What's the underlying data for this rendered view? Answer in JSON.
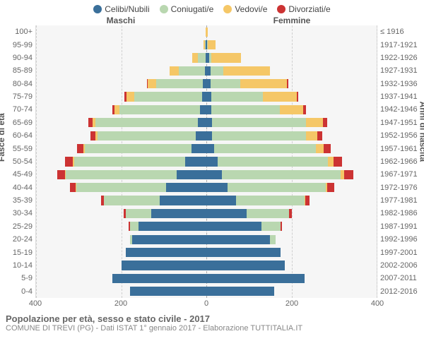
{
  "legend": [
    {
      "label": "Celibi/Nubili",
      "color": "#3a6f9a"
    },
    {
      "label": "Coniugati/e",
      "color": "#b9d7b0"
    },
    {
      "label": "Vedovi/e",
      "color": "#f5c767"
    },
    {
      "label": "Divorziati/e",
      "color": "#cc3333"
    }
  ],
  "headers": {
    "maschi": "Maschi",
    "femmine": "Femmine"
  },
  "axis_labels": {
    "left": "Fasce di età",
    "right": "Anni di nascita"
  },
  "footer": {
    "title": "Popolazione per età, sesso e stato civile - 2017",
    "sub": "COMUNE DI TREVI (PG) - Dati ISTAT 1° gennaio 2017 - Elaborazione TUTTITALIA.IT"
  },
  "chart": {
    "type": "population-pyramid-stacked",
    "max": 400,
    "ticks": [
      -400,
      -200,
      0,
      200,
      400
    ],
    "tick_labels": [
      "400",
      "200",
      "0",
      "200",
      "400"
    ],
    "background": "#f6f6f6",
    "grid_color": "#cfcfcf",
    "colors": {
      "single": "#3a6f9a",
      "married": "#b9d7b0",
      "widowed": "#f5c767",
      "divorced": "#cc3333"
    },
    "rows": [
      {
        "age": "100+",
        "birth": "≤ 1916",
        "m": {
          "single": 0,
          "married": 0,
          "widowed": 2,
          "divorced": 0
        },
        "f": {
          "single": 0,
          "married": 0,
          "widowed": 4,
          "divorced": 0
        }
      },
      {
        "age": "95-99",
        "birth": "1917-1921",
        "m": {
          "single": 1,
          "married": 2,
          "widowed": 4,
          "divorced": 0
        },
        "f": {
          "single": 2,
          "married": 1,
          "widowed": 18,
          "divorced": 0
        }
      },
      {
        "age": "90-94",
        "birth": "1922-1926",
        "m": {
          "single": 2,
          "married": 18,
          "widowed": 14,
          "divorced": 0
        },
        "f": {
          "single": 6,
          "married": 6,
          "widowed": 70,
          "divorced": 0
        }
      },
      {
        "age": "85-89",
        "birth": "1927-1931",
        "m": {
          "single": 4,
          "married": 60,
          "widowed": 22,
          "divorced": 0
        },
        "f": {
          "single": 10,
          "married": 30,
          "widowed": 110,
          "divorced": 0
        }
      },
      {
        "age": "80-84",
        "birth": "1932-1936",
        "m": {
          "single": 8,
          "married": 110,
          "widowed": 20,
          "divorced": 2
        },
        "f": {
          "single": 10,
          "married": 70,
          "widowed": 110,
          "divorced": 2
        }
      },
      {
        "age": "75-79",
        "birth": "1937-1941",
        "m": {
          "single": 10,
          "married": 160,
          "widowed": 18,
          "divorced": 4
        },
        "f": {
          "single": 12,
          "married": 120,
          "widowed": 80,
          "divorced": 4
        }
      },
      {
        "age": "70-74",
        "birth": "1942-1946",
        "m": {
          "single": 15,
          "married": 190,
          "widowed": 10,
          "divorced": 6
        },
        "f": {
          "single": 12,
          "married": 160,
          "widowed": 56,
          "divorced": 6
        }
      },
      {
        "age": "65-69",
        "birth": "1947-1951",
        "m": {
          "single": 20,
          "married": 240,
          "widowed": 8,
          "divorced": 10
        },
        "f": {
          "single": 14,
          "married": 220,
          "widowed": 40,
          "divorced": 10
        }
      },
      {
        "age": "60-64",
        "birth": "1952-1956",
        "m": {
          "single": 25,
          "married": 230,
          "widowed": 6,
          "divorced": 12
        },
        "f": {
          "single": 14,
          "married": 220,
          "widowed": 26,
          "divorced": 12
        }
      },
      {
        "age": "55-59",
        "birth": "1957-1961",
        "m": {
          "single": 35,
          "married": 250,
          "widowed": 4,
          "divorced": 14
        },
        "f": {
          "single": 18,
          "married": 240,
          "widowed": 18,
          "divorced": 16
        }
      },
      {
        "age": "50-54",
        "birth": "1962-1966",
        "m": {
          "single": 50,
          "married": 260,
          "widowed": 4,
          "divorced": 18
        },
        "f": {
          "single": 26,
          "married": 260,
          "widowed": 12,
          "divorced": 20
        }
      },
      {
        "age": "45-49",
        "birth": "1967-1971",
        "m": {
          "single": 70,
          "married": 260,
          "widowed": 2,
          "divorced": 18
        },
        "f": {
          "single": 36,
          "married": 280,
          "widowed": 8,
          "divorced": 22
        }
      },
      {
        "age": "40-44",
        "birth": "1972-1976",
        "m": {
          "single": 95,
          "married": 210,
          "widowed": 2,
          "divorced": 14
        },
        "f": {
          "single": 50,
          "married": 230,
          "widowed": 4,
          "divorced": 16
        }
      },
      {
        "age": "35-39",
        "birth": "1977-1981",
        "m": {
          "single": 110,
          "married": 130,
          "widowed": 0,
          "divorced": 8
        },
        "f": {
          "single": 70,
          "married": 160,
          "widowed": 2,
          "divorced": 10
        }
      },
      {
        "age": "30-34",
        "birth": "1982-1986",
        "m": {
          "single": 130,
          "married": 60,
          "widowed": 0,
          "divorced": 4
        },
        "f": {
          "single": 95,
          "married": 100,
          "widowed": 0,
          "divorced": 6
        }
      },
      {
        "age": "25-29",
        "birth": "1987-1991",
        "m": {
          "single": 160,
          "married": 20,
          "widowed": 0,
          "divorced": 2
        },
        "f": {
          "single": 130,
          "married": 45,
          "widowed": 0,
          "divorced": 2
        }
      },
      {
        "age": "20-24",
        "birth": "1992-1996",
        "m": {
          "single": 175,
          "married": 4,
          "widowed": 0,
          "divorced": 0
        },
        "f": {
          "single": 150,
          "married": 12,
          "widowed": 0,
          "divorced": 0
        }
      },
      {
        "age": "15-19",
        "birth": "1997-2001",
        "m": {
          "single": 190,
          "married": 0,
          "widowed": 0,
          "divorced": 0
        },
        "f": {
          "single": 175,
          "married": 0,
          "widowed": 0,
          "divorced": 0
        }
      },
      {
        "age": "10-14",
        "birth": "2002-2006",
        "m": {
          "single": 200,
          "married": 0,
          "widowed": 0,
          "divorced": 0
        },
        "f": {
          "single": 185,
          "married": 0,
          "widowed": 0,
          "divorced": 0
        }
      },
      {
        "age": "5-9",
        "birth": "2007-2011",
        "m": {
          "single": 220,
          "married": 0,
          "widowed": 0,
          "divorced": 0
        },
        "f": {
          "single": 230,
          "married": 0,
          "widowed": 0,
          "divorced": 0
        }
      },
      {
        "age": "0-4",
        "birth": "2012-2016",
        "m": {
          "single": 180,
          "married": 0,
          "widowed": 0,
          "divorced": 0
        },
        "f": {
          "single": 160,
          "married": 0,
          "widowed": 0,
          "divorced": 0
        }
      }
    ]
  }
}
